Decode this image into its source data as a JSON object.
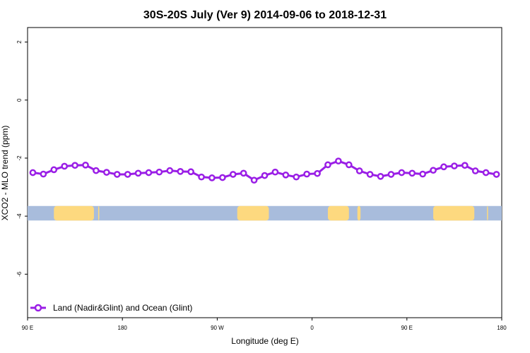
{
  "chart_data": {
    "type": "line",
    "title": "30S-20S July (Ver 9)   2014-09-06 to 2018-12-31",
    "xlabel": "Longitude (deg E)",
    "ylabel": "XCO2 - MLO trend (ppm)",
    "x_ticks": [
      {
        "value": 90,
        "label": "90 E"
      },
      {
        "value": 180,
        "label": "180"
      },
      {
        "value": 270,
        "label": "90 W"
      },
      {
        "value": 360,
        "label": "0"
      },
      {
        "value": 450,
        "label": "90 E"
      },
      {
        "value": 540,
        "label": "180"
      }
    ],
    "y_ticks": [
      {
        "value": 2,
        "label": "2"
      },
      {
        "value": 0,
        "label": "0"
      },
      {
        "value": -2,
        "label": "-2"
      },
      {
        "value": -4,
        "label": "-4"
      },
      {
        "value": -6,
        "label": "-6"
      }
    ],
    "xlim": [
      90,
      540
    ],
    "ylim": [
      -7.5,
      2.5
    ],
    "grid": false,
    "legend_position": "bottom-left",
    "series": [
      {
        "name": "Land (Nadir&Glint) and Ocean (Glint)",
        "color": "#9a1ee6",
        "x": [
          95,
          105,
          115,
          125,
          135,
          145,
          155,
          165,
          175,
          185,
          195,
          205,
          215,
          225,
          235,
          245,
          255,
          265,
          275,
          285,
          295,
          305,
          315,
          325,
          335,
          345,
          355,
          365,
          375,
          385,
          395,
          405,
          415,
          425,
          435,
          445,
          455,
          465,
          475,
          485,
          495,
          505,
          515,
          525,
          535
        ],
        "values": [
          -2.5,
          -2.55,
          -2.4,
          -2.28,
          -2.25,
          -2.24,
          -2.43,
          -2.49,
          -2.56,
          -2.56,
          -2.52,
          -2.5,
          -2.48,
          -2.43,
          -2.46,
          -2.47,
          -2.65,
          -2.68,
          -2.67,
          -2.56,
          -2.52,
          -2.76,
          -2.6,
          -2.48,
          -2.58,
          -2.65,
          -2.55,
          -2.53,
          -2.23,
          -2.1,
          -2.23,
          -2.44,
          -2.56,
          -2.63,
          -2.56,
          -2.5,
          -2.52,
          -2.55,
          -2.42,
          -2.3,
          -2.27,
          -2.25,
          -2.44,
          -2.5,
          -2.56
        ]
      }
    ],
    "land_ocean_band": {
      "y_range": [
        -4.15,
        -3.65
      ],
      "ocean_color": "#a8bcdc",
      "land_color": "#fdd97f",
      "land_segments": [
        [
          115,
          153
        ],
        [
          157,
          158
        ],
        [
          289,
          319
        ],
        [
          375,
          395
        ],
        [
          403,
          406
        ],
        [
          475,
          514
        ],
        [
          526,
          527
        ]
      ]
    }
  }
}
